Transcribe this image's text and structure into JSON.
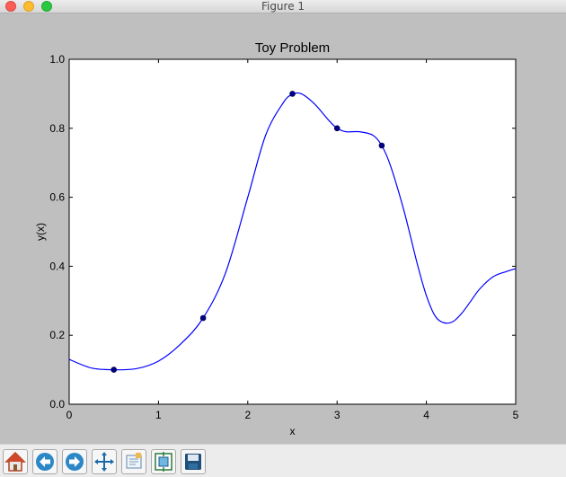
{
  "window": {
    "title": "Figure 1"
  },
  "toolbar": {
    "buttons": [
      {
        "name": "home",
        "icon": "home-icon"
      },
      {
        "name": "back",
        "icon": "back-arrow-icon"
      },
      {
        "name": "forward",
        "icon": "forward-arrow-icon"
      },
      {
        "name": "pan",
        "icon": "move-icon"
      },
      {
        "name": "zoom",
        "icon": "zoom-rectangle-icon"
      },
      {
        "name": "subplots",
        "icon": "configure-subplots-icon"
      },
      {
        "name": "save",
        "icon": "save-disk-icon"
      }
    ]
  },
  "chart_data": {
    "type": "line",
    "title": "Toy Problem",
    "xlabel": "x",
    "ylabel": "y(x)",
    "xlim": [
      0,
      5
    ],
    "ylim": [
      0.0,
      1.0
    ],
    "xticks": [
      "0",
      "1",
      "2",
      "3",
      "4",
      "5"
    ],
    "yticks": [
      "0.0",
      "0.2",
      "0.4",
      "0.6",
      "0.8",
      "1.0"
    ],
    "grid": false,
    "line_color": "#0000ff",
    "marker_color": "#00008b",
    "points": {
      "x": [
        0.5,
        1.5,
        2.5,
        3.0,
        3.5
      ],
      "y": [
        0.1,
        0.25,
        0.9,
        0.8,
        0.75
      ]
    },
    "curve": {
      "x": [
        0,
        0.25,
        0.5,
        0.75,
        1.0,
        1.25,
        1.5,
        1.75,
        2.0,
        2.2,
        2.4,
        2.5,
        2.6,
        2.75,
        2.9,
        3.0,
        3.1,
        3.25,
        3.4,
        3.5,
        3.6,
        3.75,
        3.9,
        4.0,
        4.1,
        4.2,
        4.3,
        4.4,
        4.5,
        4.6,
        4.75,
        4.9,
        5.0
      ],
      "y": [
        0.13,
        0.105,
        0.1,
        0.103,
        0.125,
        0.175,
        0.25,
        0.38,
        0.6,
        0.78,
        0.875,
        0.898,
        0.9,
        0.87,
        0.825,
        0.8,
        0.79,
        0.79,
        0.78,
        0.75,
        0.69,
        0.56,
        0.405,
        0.315,
        0.255,
        0.236,
        0.24,
        0.265,
        0.3,
        0.335,
        0.37,
        0.385,
        0.393
      ]
    }
  }
}
